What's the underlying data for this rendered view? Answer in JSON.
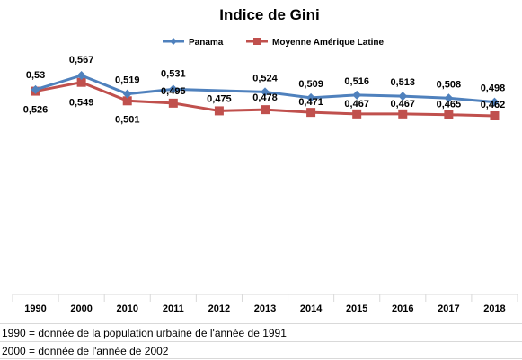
{
  "chart_data": {
    "type": "line",
    "title": "Indice de Gini",
    "xlabel": "",
    "ylabel": "",
    "categories": [
      "1990",
      "2000",
      "2010",
      "2011",
      "2012",
      "2013",
      "2014",
      "2015",
      "2016",
      "2017",
      "2018"
    ],
    "series": [
      {
        "name": "Panama",
        "color": "#4f81bd",
        "marker": "diamond",
        "values": [
          0.53,
          0.567,
          0.519,
          0.531,
          null,
          0.524,
          0.509,
          0.516,
          0.513,
          0.508,
          0.498
        ],
        "labels": [
          "0,53",
          "0,567",
          "0,519",
          "0,531",
          "",
          "0,524",
          "0,509",
          "0,516",
          "0,513",
          "0,508",
          "0,498"
        ]
      },
      {
        "name": "Moyenne Amérique Latine",
        "color": "#c0504d",
        "marker": "square",
        "values": [
          0.526,
          0.549,
          0.501,
          0.495,
          0.475,
          0.478,
          0.471,
          0.467,
          0.467,
          0.465,
          0.462
        ],
        "labels": [
          "0,526",
          "0,549",
          "0,501",
          "0,495",
          "0,475",
          "0,478",
          "0,471",
          "0,467",
          "0,467",
          "0,465",
          "0,462"
        ]
      }
    ],
    "legend_position": "top",
    "grid": false
  },
  "notes": [
    "1990 = donnée de la population urbaine de l'année de 1991",
    "2000 = donnée de l'année de 2002"
  ]
}
